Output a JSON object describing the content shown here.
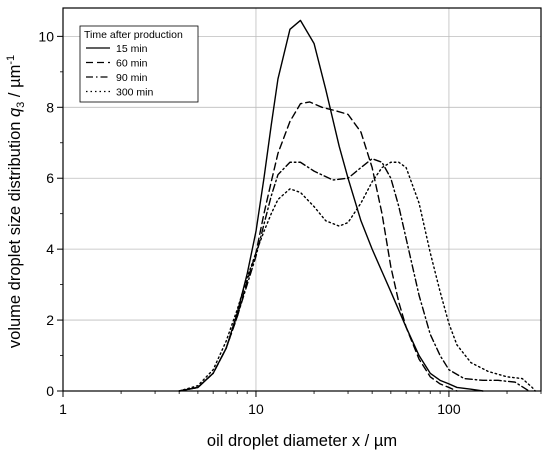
{
  "chart_data": {
    "type": "line",
    "xlabel": "oil droplet diameter x / µm",
    "ylabel": {
      "main": "volume droplet size distribution ",
      "symbol": "q",
      "subscript": "3",
      "unit": " / µm",
      "superscript": "-1"
    },
    "x_scale": "log",
    "xlim": [
      1,
      300
    ],
    "ylim": [
      0,
      10.8
    ],
    "x_ticks": [
      {
        "value": 1,
        "label": "1"
      },
      {
        "value": 10,
        "label": "10"
      },
      {
        "value": 100,
        "label": "100"
      }
    ],
    "y_ticks": [
      {
        "value": 0,
        "label": "0"
      },
      {
        "value": 2,
        "label": "2"
      },
      {
        "value": 4,
        "label": "4"
      },
      {
        "value": 6,
        "label": "6"
      },
      {
        "value": 8,
        "label": "8"
      },
      {
        "value": 10,
        "label": "10"
      }
    ],
    "grid": true,
    "legend": {
      "title": "Time after production",
      "placement": "top-left"
    },
    "series": [
      {
        "name": "15 min",
        "dash": "solid",
        "points": [
          [
            4,
            0
          ],
          [
            5,
            0.1
          ],
          [
            6,
            0.5
          ],
          [
            7,
            1.2
          ],
          [
            8,
            2.2
          ],
          [
            9,
            3.3
          ],
          [
            10,
            4.5
          ],
          [
            11,
            6.0
          ],
          [
            12,
            7.5
          ],
          [
            13,
            8.8
          ],
          [
            15,
            10.2
          ],
          [
            17,
            10.45
          ],
          [
            20,
            9.8
          ],
          [
            23,
            8.5
          ],
          [
            27,
            6.9
          ],
          [
            30,
            6.0
          ],
          [
            35,
            4.8
          ],
          [
            40,
            4.0
          ],
          [
            50,
            2.8
          ],
          [
            60,
            1.8
          ],
          [
            70,
            1.0
          ],
          [
            80,
            0.5
          ],
          [
            90,
            0.3
          ],
          [
            100,
            0.2
          ],
          [
            110,
            0.1
          ],
          [
            130,
            0.05
          ],
          [
            150,
            0
          ]
        ]
      },
      {
        "name": "60 min",
        "dash": "dashed",
        "points": [
          [
            4,
            0
          ],
          [
            5,
            0.1
          ],
          [
            6,
            0.5
          ],
          [
            7,
            1.2
          ],
          [
            8,
            2.1
          ],
          [
            9,
            3.1
          ],
          [
            10,
            3.9
          ],
          [
            11,
            5.0
          ],
          [
            12,
            5.9
          ],
          [
            13,
            6.7
          ],
          [
            15,
            7.6
          ],
          [
            17,
            8.1
          ],
          [
            19,
            8.15
          ],
          [
            22,
            8.0
          ],
          [
            26,
            7.9
          ],
          [
            30,
            7.8
          ],
          [
            35,
            7.3
          ],
          [
            40,
            6.3
          ],
          [
            45,
            5.0
          ],
          [
            50,
            3.5
          ],
          [
            55,
            2.5
          ],
          [
            60,
            1.8
          ],
          [
            70,
            0.9
          ],
          [
            80,
            0.4
          ],
          [
            90,
            0.2
          ],
          [
            100,
            0.1
          ],
          [
            110,
            0
          ]
        ]
      },
      {
        "name": "90 min",
        "dash": "dashdot",
        "points": [
          [
            4,
            0
          ],
          [
            5,
            0.1
          ],
          [
            6,
            0.5
          ],
          [
            7,
            1.2
          ],
          [
            8,
            2.1
          ],
          [
            9,
            3.0
          ],
          [
            10,
            3.8
          ],
          [
            11,
            4.7
          ],
          [
            12,
            5.5
          ],
          [
            13,
            6.1
          ],
          [
            15,
            6.45
          ],
          [
            17,
            6.45
          ],
          [
            20,
            6.2
          ],
          [
            25,
            5.95
          ],
          [
            30,
            6.0
          ],
          [
            35,
            6.3
          ],
          [
            40,
            6.55
          ],
          [
            45,
            6.45
          ],
          [
            50,
            6.0
          ],
          [
            55,
            5.2
          ],
          [
            60,
            4.3
          ],
          [
            70,
            2.7
          ],
          [
            80,
            1.6
          ],
          [
            90,
            1.0
          ],
          [
            100,
            0.6
          ],
          [
            120,
            0.35
          ],
          [
            150,
            0.3
          ],
          [
            180,
            0.3
          ],
          [
            220,
            0.25
          ],
          [
            260,
            0
          ]
        ]
      },
      {
        "name": "300 min",
        "dash": "dotted",
        "points": [
          [
            4,
            0
          ],
          [
            5,
            0.15
          ],
          [
            6,
            0.6
          ],
          [
            7,
            1.4
          ],
          [
            8,
            2.3
          ],
          [
            9,
            3.2
          ],
          [
            10,
            3.9
          ],
          [
            11,
            4.5
          ],
          [
            12,
            5.0
          ],
          [
            13,
            5.4
          ],
          [
            15,
            5.7
          ],
          [
            17,
            5.6
          ],
          [
            20,
            5.2
          ],
          [
            23,
            4.8
          ],
          [
            27,
            4.65
          ],
          [
            30,
            4.75
          ],
          [
            35,
            5.3
          ],
          [
            40,
            5.9
          ],
          [
            45,
            6.3
          ],
          [
            50,
            6.45
          ],
          [
            55,
            6.45
          ],
          [
            60,
            6.3
          ],
          [
            70,
            5.3
          ],
          [
            80,
            3.9
          ],
          [
            90,
            2.8
          ],
          [
            100,
            1.9
          ],
          [
            110,
            1.3
          ],
          [
            130,
            0.8
          ],
          [
            160,
            0.55
          ],
          [
            200,
            0.4
          ],
          [
            240,
            0.35
          ],
          [
            270,
            0.1
          ],
          [
            280,
            0
          ]
        ]
      }
    ]
  }
}
